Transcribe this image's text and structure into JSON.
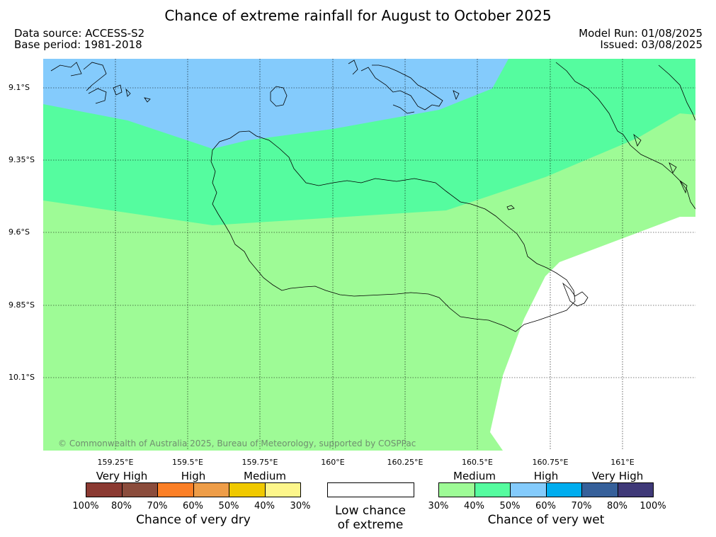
{
  "title": "Chance of extreme rainfall for August to October 2025",
  "meta": {
    "data_source": "Data source: ACCESS-S2",
    "base_period": "Base period: 1981-2018",
    "model_run": "Model Run: 01/08/2025",
    "issued": "Issued: 03/08/2025"
  },
  "map": {
    "lat_labels": [
      "9.1°S",
      "9.35°S",
      "9.6°S",
      "9.85°S",
      "10.1°S"
    ],
    "lon_labels": [
      "159.25°E",
      "159.5°E",
      "159.75°E",
      "160°E",
      "160.25°E",
      "160.5°E",
      "160.75°E",
      "161°E"
    ],
    "copyright": "© Commonwealth of Australia 2025, Bureau of Meteorology, supported by COSPPac",
    "zone_colors": {
      "medium_wet": "#9efb96",
      "high_wet_low": "#55fc9f",
      "high_wet": "#84cbfc"
    }
  },
  "legend": {
    "dry": {
      "categories": [
        "Very High",
        "High",
        "Medium"
      ],
      "colors": [
        "#8b3a32",
        "#8b4c3c",
        "#fb7f26",
        "#ee9d48",
        "#f0c900",
        "#fdf68b"
      ],
      "percents": [
        "100%",
        "80%",
        "70%",
        "60%",
        "50%",
        "40%",
        "30%"
      ],
      "caption": "Chance of very dry"
    },
    "low": {
      "caption_line1": "Low chance",
      "caption_line2": "of extreme",
      "color": "#ffffff"
    },
    "wet": {
      "categories": [
        "Medium",
        "High",
        "Very High"
      ],
      "colors": [
        "#9efb96",
        "#55fc9f",
        "#84cbfc",
        "#00adef",
        "#36609a",
        "#3f3978"
      ],
      "percents": [
        "30%",
        "40%",
        "50%",
        "60%",
        "70%",
        "80%",
        "100%"
      ],
      "caption": "Chance of very wet"
    }
  }
}
